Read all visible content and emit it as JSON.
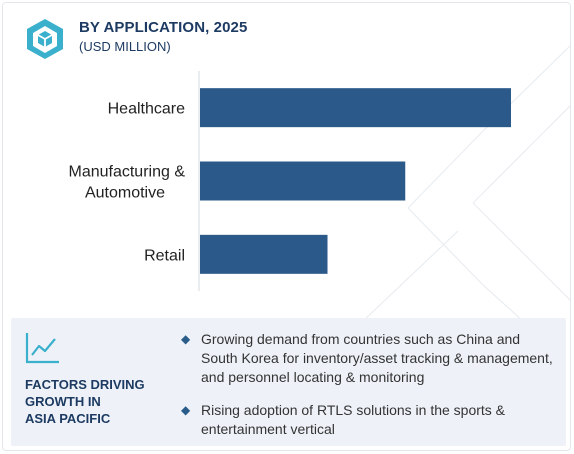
{
  "header": {
    "title": "BY APPLICATION, 2025",
    "subtitle": "(USD MILLION)",
    "icon": "cube-logo-icon"
  },
  "chart_data": {
    "type": "bar",
    "orientation": "horizontal",
    "title": "BY APPLICATION, 2025",
    "subtitle": "(USD MILLION)",
    "categories": [
      [
        "Healthcare"
      ],
      [
        "Manufacturing &",
        "Automotive"
      ],
      [
        "Retail"
      ]
    ],
    "values": [
      100,
      66,
      41
    ],
    "value_axis": "unlabeled, no ticks",
    "grid": false,
    "legend": "none",
    "bar_color": "#2b5a8a"
  },
  "factors": {
    "icon": "trend-chart-icon",
    "title_lines": [
      "FACTORS DRIVING",
      "GROWTH IN",
      "ASIA PACIFIC"
    ],
    "items": [
      "Growing demand from countries such as China and South Korea for inventory/asset tracking & management, and personnel locating & monitoring",
      "Rising adoption of RTLS solutions in the sports & entertainment vertical"
    ]
  },
  "colors": {
    "accent": "#2b5a8a",
    "logo": "#3bb0cc",
    "panel_bg": "#eef2f8",
    "title": "#1d3b62"
  }
}
